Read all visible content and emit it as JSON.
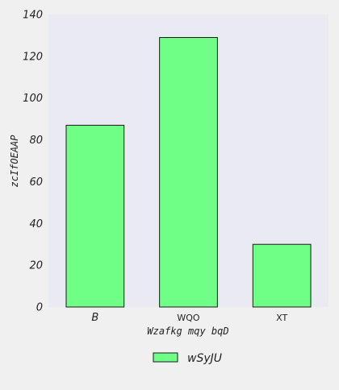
{
  "chart_data": {
    "type": "bar",
    "categories": [
      "B",
      "WQO",
      "XT"
    ],
    "series": [
      {
        "name": "wSyJU",
        "values": [
          87,
          129,
          30
        ]
      }
    ],
    "xlabel": "Wzafkg mqy bqD",
    "ylabel": "zcIfOEAAP",
    "ylim": [
      0,
      140
    ],
    "yticks": [
      0,
      20,
      40,
      60,
      80,
      100,
      120,
      140
    ],
    "grid": false,
    "legend_position": "bottom-center",
    "colors": {
      "bar_fill": "#6fff86",
      "bar_stroke": "#1a1a1a",
      "plot_background": "#eaeaf2",
      "page_background": "#f0f0f0"
    }
  }
}
